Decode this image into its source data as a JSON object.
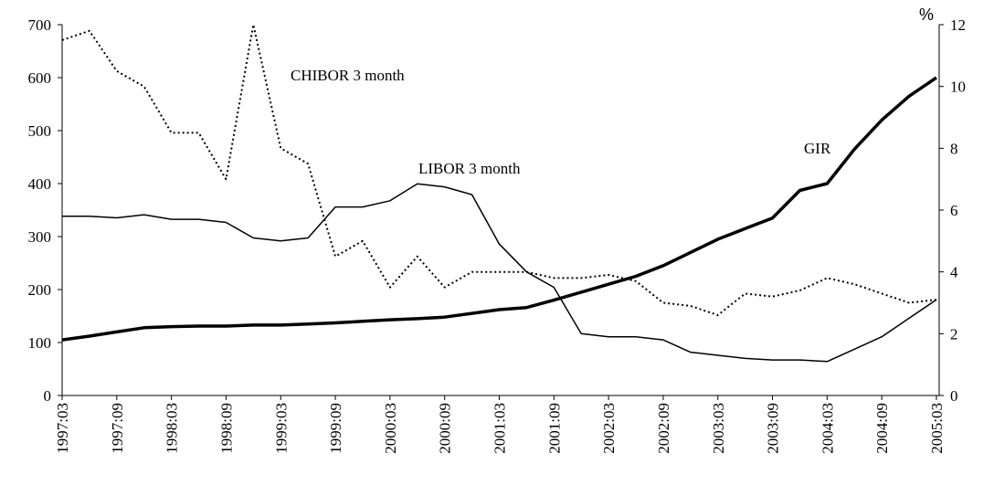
{
  "chart_data": {
    "type": "line",
    "categories": [
      "1997:03",
      null,
      "1997:09",
      null,
      "1998:03",
      null,
      "1998:09",
      null,
      "1999:03",
      null,
      "1999:09",
      null,
      "2000:03",
      null,
      "2000:09",
      null,
      "2001:03",
      null,
      "2001:09",
      null,
      "2002:03",
      null,
      "2002:09",
      null,
      "2003:03",
      null,
      "2003:09",
      null,
      "2004:03",
      null,
      "2004:09",
      null,
      "2005:03"
    ],
    "ylim": [
      0,
      700
    ],
    "yticks": [
      0,
      100,
      200,
      300,
      400,
      500,
      600,
      700
    ],
    "y2label": "%",
    "y2lim": [
      0,
      12
    ],
    "y2ticks": [
      0,
      2,
      4,
      6,
      8,
      10,
      12
    ],
    "grid": false,
    "series": [
      {
        "name": "GIR",
        "color": "#000000",
        "line_style": "solid",
        "line_width": 3.5,
        "values": [
          105,
          112,
          120,
          128,
          130,
          131,
          131,
          133,
          133,
          135,
          137,
          140,
          143,
          145,
          148,
          155,
          162,
          166,
          180,
          195,
          210,
          225,
          245,
          270,
          295,
          315,
          335,
          387,
          400,
          465,
          520,
          565,
          600
        ]
      },
      {
        "name": "LIBOR 3 month",
        "color": "#000000",
        "line_style": "solid",
        "line_width": 1.5,
        "axis": "y2",
        "values": [
          5.8,
          5.8,
          5.75,
          5.85,
          5.7,
          5.7,
          5.6,
          5.1,
          5.0,
          5.1,
          6.1,
          6.1,
          6.3,
          6.85,
          6.75,
          6.5,
          4.9,
          4.0,
          3.5,
          2.0,
          1.9,
          1.9,
          1.8,
          1.4,
          1.3,
          1.2,
          1.15,
          1.15,
          1.1,
          1.5,
          1.9,
          2.5,
          3.1
        ]
      },
      {
        "name": "CHIBOR 3 month",
        "color": "#000000",
        "line_style": "dotted",
        "line_width": 2,
        "axis": "y2",
        "values": [
          11.5,
          11.8,
          10.5,
          10.0,
          8.5,
          8.5,
          7.0,
          12.0,
          8.0,
          7.5,
          4.5,
          5.0,
          3.5,
          4.5,
          3.5,
          4.0,
          4.0,
          4.0,
          3.8,
          3.8,
          3.9,
          3.7,
          3.0,
          2.9,
          2.6,
          3.3,
          3.2,
          3.4,
          3.8,
          3.6,
          3.3,
          3.0,
          3.1
        ]
      }
    ]
  }
}
